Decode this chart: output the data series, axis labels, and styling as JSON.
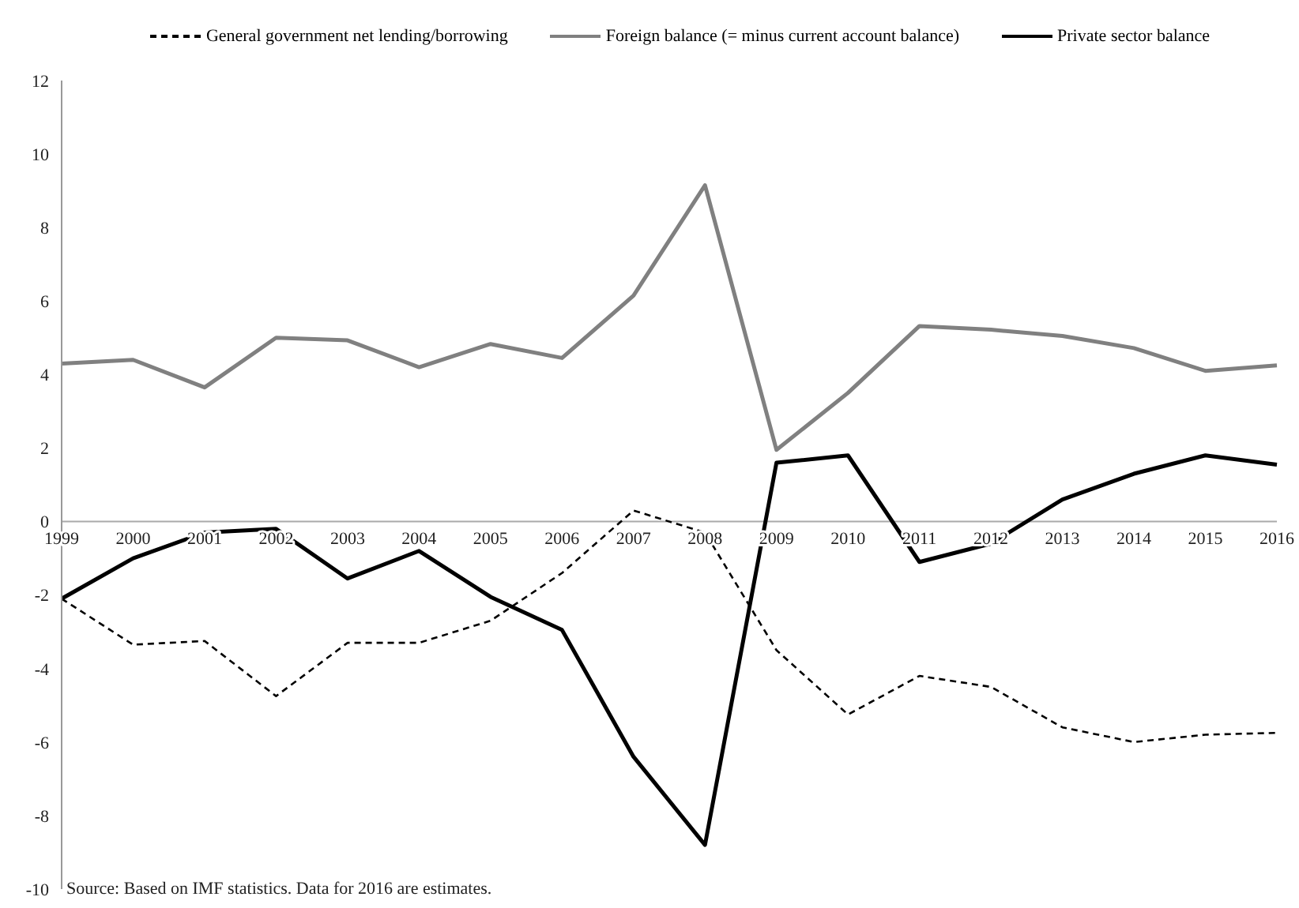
{
  "chart_data": {
    "type": "line",
    "categories": [
      "1999",
      "2000",
      "2001",
      "2002",
      "2003",
      "2004",
      "2005",
      "2006",
      "2007",
      "2008",
      "2009",
      "2010",
      "2011",
      "2012",
      "2013",
      "2014",
      "2015",
      "2016"
    ],
    "series": [
      {
        "name": "General government net lending/borrowing",
        "color": "#000000",
        "line_style": "dashed",
        "values": [
          -2.1,
          -3.35,
          -3.25,
          -4.75,
          -3.3,
          -3.3,
          -2.7,
          -1.4,
          0.3,
          -0.3,
          -3.5,
          -5.25,
          -4.2,
          -4.5,
          -5.6,
          -6.0,
          -5.8,
          -5.75
        ]
      },
      {
        "name": "Foreign balance (= minus current account balance)",
        "color": "#808080",
        "line_style": "solid",
        "values": [
          4.3,
          4.4,
          3.65,
          5.0,
          4.93,
          4.2,
          4.83,
          4.45,
          6.15,
          9.15,
          1.95,
          3.5,
          5.32,
          5.22,
          5.05,
          4.72,
          4.1,
          4.25
        ]
      },
      {
        "name": "Private sector balance",
        "color": "#000000",
        "line_style": "solid",
        "values": [
          -2.1,
          -1.0,
          -0.3,
          -0.2,
          -1.55,
          -0.8,
          -2.05,
          -2.95,
          -6.4,
          -8.8,
          1.6,
          1.8,
          -1.1,
          -0.6,
          0.6,
          1.3,
          1.8,
          1.55
        ]
      }
    ],
    "ylim": [
      -10,
      12
    ],
    "yticks": [
      -10,
      -8,
      -6,
      -4,
      -2,
      0,
      2,
      4,
      6,
      8,
      10,
      12
    ],
    "grid": false,
    "legend": "top",
    "marker": "none",
    "annotations": [
      "Source:  Based on IMF statistics. Data for 2016 are estimates."
    ]
  }
}
